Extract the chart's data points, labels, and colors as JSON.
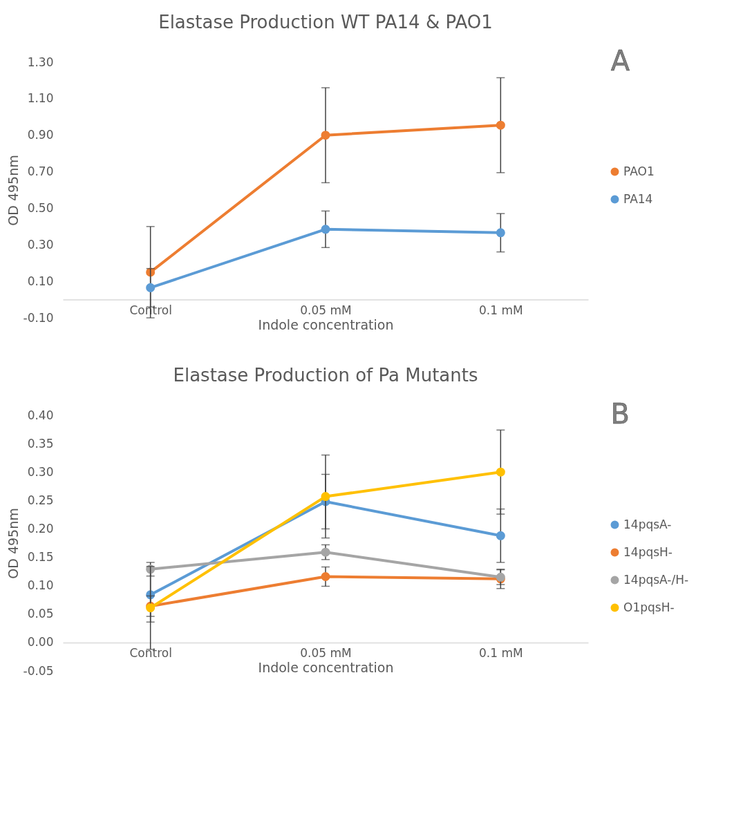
{
  "chart_data": [
    {
      "type": "line",
      "title": "Elastase Production WT PA14 & PAO1",
      "xlabel": "Indole concentration",
      "ylabel": "OD 495nm",
      "categories": [
        "Control",
        "0.05 mM",
        "0.1 mM"
      ],
      "series": [
        {
          "name": "PAO1",
          "color": "#ed7d31",
          "values": [
            0.15,
            0.9,
            0.955
          ],
          "errors": [
            0.25,
            0.26,
            0.26
          ]
        },
        {
          "name": "PA14",
          "color": "#5b9bd5",
          "values": [
            0.065,
            0.385,
            0.366
          ],
          "errors": [
            0.105,
            0.1,
            0.105
          ]
        }
      ],
      "ylim": [
        -0.1,
        1.3
      ],
      "yticks": [
        {
          "value": -0.1,
          "label": "-0.10"
        },
        {
          "value": 0.1,
          "label": "0.10"
        },
        {
          "value": 0.3,
          "label": "0.30"
        },
        {
          "value": 0.5,
          "label": "0.50"
        },
        {
          "value": 0.7,
          "label": "0.70"
        },
        {
          "value": 0.9,
          "label": "0.90"
        },
        {
          "value": 1.1,
          "label": "1.10"
        },
        {
          "value": 1.3,
          "label": "1.30"
        }
      ],
      "annotations": [
        "A"
      ],
      "legend": "right",
      "grid": false,
      "marker": "circle",
      "line_style": "solid"
    },
    {
      "type": "line",
      "title": "Elastase Production of Pa Mutants",
      "xlabel": "Indole concentration",
      "ylabel": "OD 495nm",
      "categories": [
        "Control",
        "0.05 mM",
        "0.1 mM"
      ],
      "series": [
        {
          "name": "14pqsA-",
          "color": "#5b9bd5",
          "values": [
            0.084,
            0.248,
            0.188
          ],
          "errors": [
            0.048,
            0.048,
            0.047
          ]
        },
        {
          "name": "14pqsH-",
          "color": "#ed7d31",
          "values": [
            0.064,
            0.116,
            0.112
          ],
          "errors": [
            0.018,
            0.017,
            0.017
          ]
        },
        {
          "name": "14pqsA-/H-",
          "color": "#a5a5a5",
          "values": [
            0.129,
            0.159,
            0.115
          ],
          "errors": [
            0.012,
            0.013,
            0.013
          ]
        },
        {
          "name": "O1pqsH-",
          "color": "#ffc000",
          "values": [
            0.061,
            0.257,
            0.3
          ],
          "errors": [
            0.073,
            0.073,
            0.074
          ]
        }
      ],
      "ylim": [
        -0.05,
        0.4
      ],
      "yticks": [
        {
          "value": -0.05,
          "label": "-0.05"
        },
        {
          "value": 0,
          "label": "0.00"
        },
        {
          "value": 0.05,
          "label": "0.05"
        },
        {
          "value": 0.1,
          "label": "0.10"
        },
        {
          "value": 0.15,
          "label": "0.15"
        },
        {
          "value": 0.2,
          "label": "0.20"
        },
        {
          "value": 0.25,
          "label": "0.25"
        },
        {
          "value": 0.3,
          "label": "0.30"
        },
        {
          "value": 0.35,
          "label": "0.35"
        },
        {
          "value": 0.4,
          "label": "0.40"
        }
      ],
      "annotations": [
        "B"
      ],
      "legend": "right",
      "grid": false,
      "marker": "circle",
      "line_style": "solid"
    }
  ]
}
